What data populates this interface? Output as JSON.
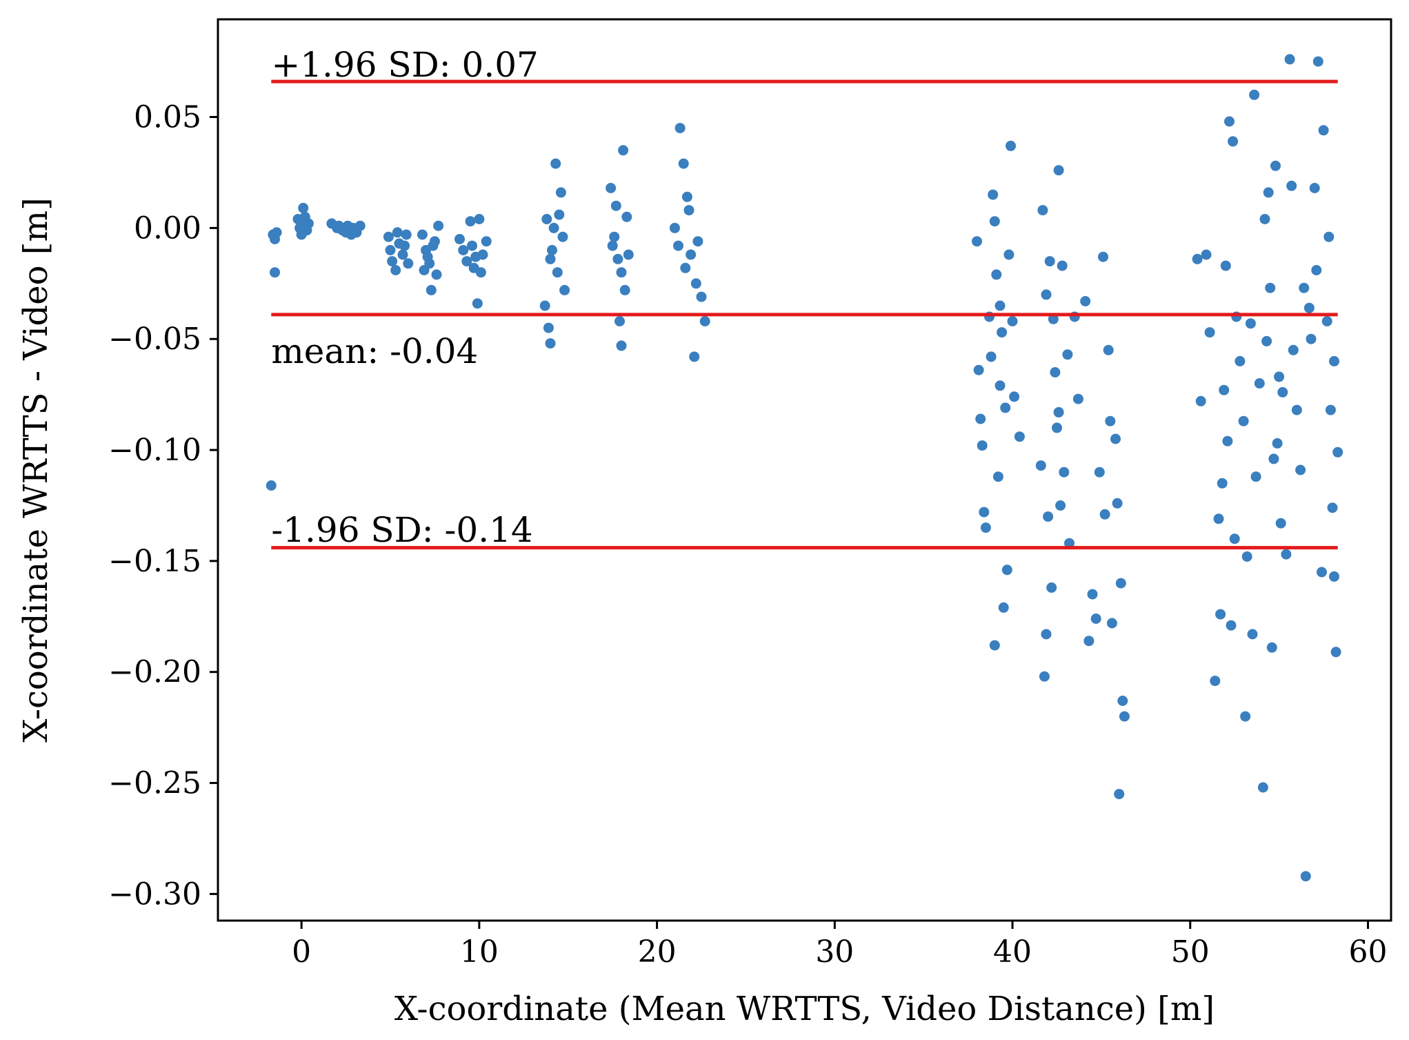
{
  "chart_data": {
    "type": "scatter",
    "title": "",
    "xlabel": "X-coordinate (Mean WRTTS, Video Distance) [m]",
    "ylabel": "X-coordinate WRTTS - Video [m]",
    "xlim": [
      -4.7,
      61.3
    ],
    "ylim": [
      -0.312,
      0.094
    ],
    "xticks": [
      0,
      10,
      20,
      30,
      40,
      50,
      60
    ],
    "xtick_labels": [
      "0",
      "10",
      "20",
      "30",
      "40",
      "50",
      "60"
    ],
    "yticks": [
      0.05,
      0.0,
      -0.05,
      -0.1,
      -0.15,
      -0.2,
      -0.25,
      -0.3
    ],
    "ytick_labels": [
      "0.05",
      "0.00",
      "−0.05",
      "−0.10",
      "−0.15",
      "−0.20",
      "−0.25",
      "−0.30"
    ],
    "grid": false,
    "colors": {
      "points": "#3a7fbf",
      "lines": "#e31a1c",
      "axis": "#000000"
    },
    "reference_lines": [
      {
        "name": "upper",
        "y": 0.066,
        "x_range": [
          -1.7,
          58.3
        ],
        "label": "+1.96 SD:  0.07",
        "label_value_x": -1.7,
        "label_value_y": 0.0735
      },
      {
        "name": "mean",
        "y": -0.039,
        "x_range": [
          -1.7,
          58.3
        ],
        "label": "mean:  -0.04",
        "label_value_x": -1.7,
        "label_value_y": -0.0555
      },
      {
        "name": "lower",
        "y": -0.144,
        "x_range": [
          -1.7,
          58.3
        ],
        "label": "-1.96 SD:  -0.14",
        "label_value_x": -1.7,
        "label_value_y": -0.136
      }
    ],
    "series": [
      {
        "name": "differences",
        "points": [
          [
            -1.6,
            -0.003
          ],
          [
            -1.5,
            -0.005
          ],
          [
            -1.4,
            -0.002
          ],
          [
            -1.5,
            -0.02
          ],
          [
            -1.7,
            -0.116
          ],
          [
            -0.2,
            0.004
          ],
          [
            0.0,
            -0.003
          ],
          [
            0.1,
            0.009
          ],
          [
            0.2,
            0.005
          ],
          [
            0.3,
            -0.001
          ],
          [
            0.4,
            0.002
          ],
          [
            -0.1,
            0.0
          ],
          [
            0.2,
            0.001
          ],
          [
            1.7,
            0.002
          ],
          [
            2.0,
            0.0
          ],
          [
            2.3,
            -0.001
          ],
          [
            2.6,
            0.001
          ],
          [
            2.9,
            0.0
          ],
          [
            3.1,
            -0.002
          ],
          [
            3.3,
            0.001
          ],
          [
            2.5,
            -0.002
          ],
          [
            2.1,
            0.001
          ],
          [
            2.8,
            -0.003
          ],
          [
            4.9,
            -0.004
          ],
          [
            5.0,
            -0.01
          ],
          [
            5.1,
            -0.015
          ],
          [
            5.3,
            -0.019
          ],
          [
            5.5,
            -0.007
          ],
          [
            5.7,
            -0.012
          ],
          [
            5.9,
            -0.003
          ],
          [
            6.0,
            -0.016
          ],
          [
            5.4,
            -0.002
          ],
          [
            5.8,
            -0.008
          ],
          [
            6.8,
            -0.003
          ],
          [
            7.0,
            -0.01
          ],
          [
            7.2,
            -0.016
          ],
          [
            7.3,
            -0.028
          ],
          [
            7.5,
            -0.006
          ],
          [
            7.6,
            -0.021
          ],
          [
            7.7,
            0.001
          ],
          [
            7.1,
            -0.013
          ],
          [
            6.9,
            -0.019
          ],
          [
            7.4,
            -0.008
          ],
          [
            8.9,
            -0.005
          ],
          [
            9.1,
            -0.01
          ],
          [
            9.3,
            -0.015
          ],
          [
            9.5,
            0.003
          ],
          [
            9.6,
            -0.008
          ],
          [
            9.8,
            -0.013
          ],
          [
            9.9,
            -0.034
          ],
          [
            10.1,
            -0.02
          ],
          [
            10.2,
            -0.012
          ],
          [
            10.4,
            -0.006
          ],
          [
            10.0,
            0.004
          ],
          [
            9.7,
            -0.018
          ],
          [
            13.7,
            -0.035
          ],
          [
            13.9,
            -0.045
          ],
          [
            14.0,
            -0.052
          ],
          [
            14.1,
            -0.01
          ],
          [
            14.2,
            0.0
          ],
          [
            14.4,
            -0.02
          ],
          [
            14.6,
            0.016
          ],
          [
            14.8,
            -0.028
          ],
          [
            14.3,
            0.029
          ],
          [
            14.5,
            0.006
          ],
          [
            14.0,
            -0.014
          ],
          [
            13.8,
            0.004
          ],
          [
            14.7,
            -0.004
          ],
          [
            17.4,
            0.018
          ],
          [
            17.6,
            -0.004
          ],
          [
            17.8,
            -0.014
          ],
          [
            17.9,
            -0.042
          ],
          [
            18.0,
            -0.053
          ],
          [
            18.1,
            0.035
          ],
          [
            18.2,
            -0.028
          ],
          [
            18.3,
            0.005
          ],
          [
            17.7,
            0.01
          ],
          [
            18.0,
            -0.02
          ],
          [
            17.5,
            -0.008
          ],
          [
            18.4,
            -0.012
          ],
          [
            21.0,
            0.0
          ],
          [
            21.2,
            -0.008
          ],
          [
            21.3,
            0.045
          ],
          [
            21.5,
            0.029
          ],
          [
            21.7,
            0.014
          ],
          [
            21.9,
            -0.012
          ],
          [
            22.1,
            -0.058
          ],
          [
            22.2,
            -0.025
          ],
          [
            22.5,
            -0.031
          ],
          [
            22.7,
            -0.042
          ],
          [
            22.3,
            -0.006
          ],
          [
            21.6,
            -0.018
          ],
          [
            21.8,
            0.008
          ],
          [
            38.0,
            -0.006
          ],
          [
            38.1,
            -0.064
          ],
          [
            38.2,
            -0.086
          ],
          [
            38.3,
            -0.098
          ],
          [
            38.4,
            -0.128
          ],
          [
            38.5,
            -0.135
          ],
          [
            38.7,
            -0.04
          ],
          [
            38.8,
            -0.058
          ],
          [
            38.9,
            0.015
          ],
          [
            39.0,
            0.003
          ],
          [
            39.1,
            -0.021
          ],
          [
            39.2,
            -0.112
          ],
          [
            39.3,
            -0.035
          ],
          [
            39.4,
            -0.047
          ],
          [
            39.5,
            -0.171
          ],
          [
            39.6,
            -0.081
          ],
          [
            39.7,
            -0.154
          ],
          [
            39.9,
            0.037
          ],
          [
            40.0,
            -0.042
          ],
          [
            40.1,
            -0.076
          ],
          [
            40.4,
            -0.094
          ],
          [
            39.0,
            -0.188
          ],
          [
            39.3,
            -0.071
          ],
          [
            39.8,
            -0.012
          ],
          [
            41.6,
            -0.107
          ],
          [
            41.8,
            -0.202
          ],
          [
            41.9,
            -0.03
          ],
          [
            42.0,
            -0.13
          ],
          [
            42.1,
            -0.015
          ],
          [
            42.2,
            -0.162
          ],
          [
            42.3,
            -0.041
          ],
          [
            42.4,
            -0.065
          ],
          [
            42.6,
            -0.083
          ],
          [
            42.7,
            -0.125
          ],
          [
            42.8,
            -0.017
          ],
          [
            42.9,
            -0.11
          ],
          [
            43.1,
            -0.057
          ],
          [
            43.2,
            -0.142
          ],
          [
            43.5,
            -0.04
          ],
          [
            43.7,
            -0.077
          ],
          [
            44.1,
            -0.033
          ],
          [
            44.3,
            -0.186
          ],
          [
            44.5,
            -0.165
          ],
          [
            44.7,
            -0.176
          ],
          [
            44.9,
            -0.11
          ],
          [
            45.1,
            -0.013
          ],
          [
            45.2,
            -0.129
          ],
          [
            45.4,
            -0.055
          ],
          [
            45.6,
            -0.178
          ],
          [
            45.8,
            -0.095
          ],
          [
            46.0,
            -0.255
          ],
          [
            46.1,
            -0.16
          ],
          [
            46.2,
            -0.213
          ],
          [
            46.3,
            -0.22
          ],
          [
            45.5,
            -0.087
          ],
          [
            41.7,
            0.008
          ],
          [
            42.6,
            0.026
          ],
          [
            41.9,
            -0.183
          ],
          [
            42.5,
            -0.09
          ],
          [
            45.9,
            -0.124
          ],
          [
            50.4,
            -0.014
          ],
          [
            50.6,
            -0.078
          ],
          [
            50.9,
            -0.012
          ],
          [
            51.1,
            -0.047
          ],
          [
            51.4,
            -0.204
          ],
          [
            51.6,
            -0.131
          ],
          [
            51.7,
            -0.174
          ],
          [
            51.8,
            -0.115
          ],
          [
            51.9,
            -0.073
          ],
          [
            52.0,
            -0.017
          ],
          [
            52.1,
            -0.096
          ],
          [
            52.2,
            0.048
          ],
          [
            52.3,
            -0.179
          ],
          [
            52.4,
            0.039
          ],
          [
            52.5,
            -0.14
          ],
          [
            52.6,
            -0.04
          ],
          [
            52.8,
            -0.06
          ],
          [
            53.0,
            -0.087
          ],
          [
            53.1,
            -0.22
          ],
          [
            53.2,
            -0.148
          ],
          [
            53.4,
            -0.043
          ],
          [
            53.6,
            0.06
          ],
          [
            53.7,
            -0.112
          ],
          [
            53.9,
            -0.07
          ],
          [
            54.1,
            -0.252
          ],
          [
            54.2,
            0.004
          ],
          [
            54.3,
            -0.051
          ],
          [
            54.4,
            0.016
          ],
          [
            54.5,
            -0.027
          ],
          [
            54.6,
            -0.189
          ],
          [
            54.7,
            -0.104
          ],
          [
            54.8,
            0.028
          ],
          [
            55.0,
            -0.067
          ],
          [
            55.2,
            -0.074
          ],
          [
            55.4,
            -0.147
          ],
          [
            55.6,
            0.076
          ],
          [
            55.7,
            0.019
          ],
          [
            55.8,
            -0.055
          ],
          [
            56.0,
            -0.082
          ],
          [
            56.2,
            -0.109
          ],
          [
            56.4,
            -0.027
          ],
          [
            56.5,
            -0.292
          ],
          [
            56.7,
            -0.036
          ],
          [
            57.0,
            0.018
          ],
          [
            57.2,
            0.075
          ],
          [
            57.4,
            -0.155
          ],
          [
            57.5,
            0.044
          ],
          [
            57.7,
            -0.042
          ],
          [
            57.9,
            -0.082
          ],
          [
            58.0,
            -0.126
          ],
          [
            58.1,
            -0.06
          ],
          [
            58.2,
            -0.191
          ],
          [
            58.3,
            -0.101
          ],
          [
            56.8,
            -0.05
          ],
          [
            57.1,
            -0.019
          ],
          [
            57.8,
            -0.004
          ],
          [
            58.1,
            -0.157
          ],
          [
            53.5,
            -0.183
          ],
          [
            55.1,
            -0.133
          ],
          [
            54.9,
            -0.097
          ]
        ]
      }
    ]
  }
}
